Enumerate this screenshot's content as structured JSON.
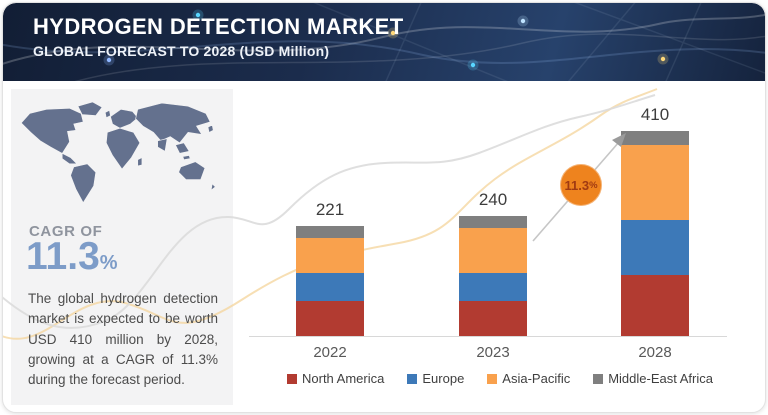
{
  "header": {
    "title": "HYDROGEN DETECTION MARKET",
    "subtitle": "GLOBAL FORECAST TO 2028 (USD Million)"
  },
  "sidebar": {
    "cagr_label": "CAGR OF",
    "cagr_value": "11.3",
    "cagr_unit": "%",
    "description": "The global hydrogen detection market is expected to be worth USD 410 million by 2028, growing at a CAGR of 11.3% during the forecast period."
  },
  "chart_data": {
    "type": "bar",
    "stacked": true,
    "title": "Hydrogen Detection Market, Global Forecast to 2028 (USD Million)",
    "categories": [
      "2022",
      "2023",
      "2028"
    ],
    "series": [
      {
        "name": "North America",
        "color": "#b23b31",
        "values": [
          70,
          70,
          122
        ]
      },
      {
        "name": "Europe",
        "color": "#3d79b8",
        "values": [
          56,
          56,
          110
        ]
      },
      {
        "name": "Asia-Pacific",
        "color": "#f9a14d",
        "values": [
          70,
          90,
          150
        ]
      },
      {
        "name": "Middle-East Africa",
        "color": "#7f7f7f",
        "values": [
          25,
          24,
          28
        ]
      }
    ],
    "totals": [
      221,
      240,
      410
    ],
    "ylim": [
      0,
      440
    ],
    "grid": false,
    "legend_position": "bottom",
    "annotation": {
      "label": "11.3",
      "unit": "%",
      "meaning": "CAGR 2023-2028"
    },
    "colors": {
      "accent_orange": "#ee831e",
      "cagr_blue": "#7d9cc8",
      "header_navy": "#1b2c4c",
      "axis_gray": "#d8d8d8"
    }
  }
}
